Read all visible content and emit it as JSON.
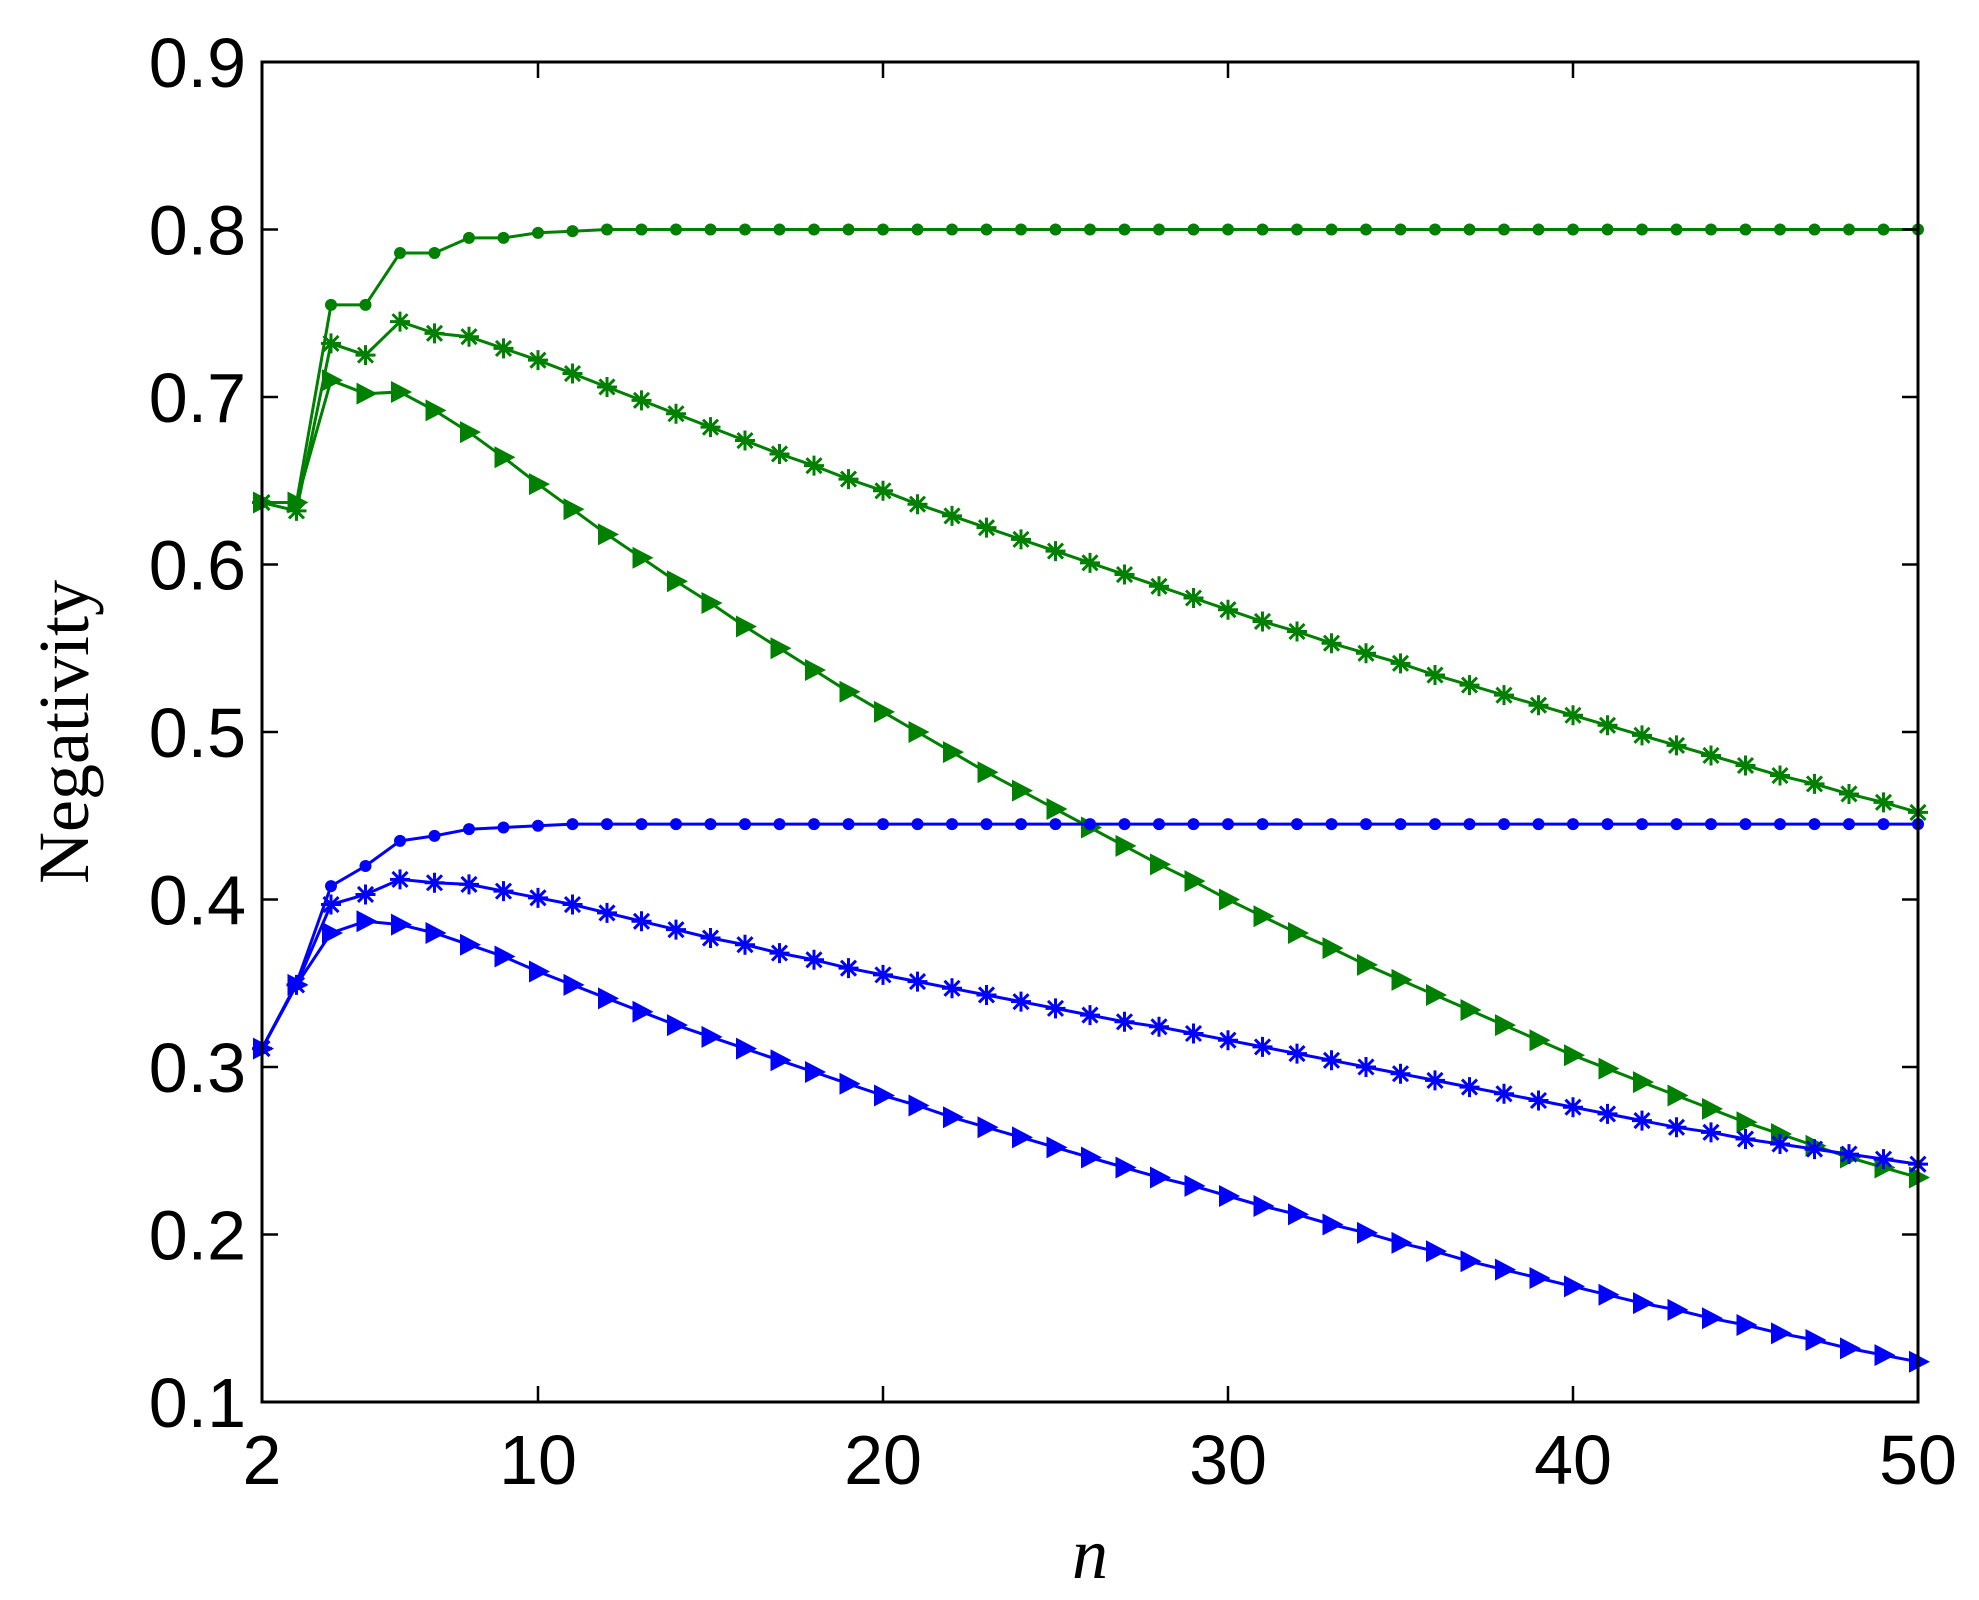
{
  "chart_data": {
    "type": "line",
    "xlabel": "n",
    "ylabel": "Negativity",
    "xlim": [
      2,
      50
    ],
    "ylim": [
      0.1,
      0.9
    ],
    "xticks": [
      2,
      10,
      20,
      30,
      40,
      50
    ],
    "xtick_labels": [
      "2",
      "10",
      "20",
      "30",
      "40",
      "50"
    ],
    "yticks": [
      0.1,
      0.2,
      0.3,
      0.4,
      0.5,
      0.6,
      0.7,
      0.8,
      0.9
    ],
    "ytick_labels": [
      "0.1",
      "0.2",
      "0.3",
      "0.4",
      "0.5",
      "0.6",
      "0.7",
      "0.8",
      "0.9"
    ],
    "grid": false,
    "x": [
      2,
      3,
      4,
      5,
      6,
      7,
      8,
      9,
      10,
      11,
      12,
      13,
      14,
      15,
      16,
      17,
      18,
      19,
      20,
      21,
      22,
      23,
      24,
      25,
      26,
      27,
      28,
      29,
      30,
      31,
      32,
      33,
      34,
      35,
      36,
      37,
      38,
      39,
      40,
      41,
      42,
      43,
      44,
      45,
      46,
      47,
      48,
      49,
      50
    ],
    "series": [
      {
        "marker": "dot",
        "color": "#008000",
        "values": [
          0.637,
          0.637,
          0.755,
          0.755,
          0.786,
          0.786,
          0.795,
          0.795,
          0.798,
          0.799,
          0.8,
          0.8,
          0.8,
          0.8,
          0.8,
          0.8,
          0.8,
          0.8,
          0.8,
          0.8,
          0.8,
          0.8,
          0.8,
          0.8,
          0.8,
          0.8,
          0.8,
          0.8,
          0.8,
          0.8,
          0.8,
          0.8,
          0.8,
          0.8,
          0.8,
          0.8,
          0.8,
          0.8,
          0.8,
          0.8,
          0.8,
          0.8,
          0.8,
          0.8,
          0.8,
          0.8,
          0.8,
          0.8,
          0.8
        ]
      },
      {
        "marker": "star",
        "color": "#008000",
        "values": [
          0.637,
          0.632,
          0.732,
          0.725,
          0.745,
          0.738,
          0.736,
          0.729,
          0.722,
          0.714,
          0.706,
          0.698,
          0.69,
          0.682,
          0.674,
          0.666,
          0.659,
          0.651,
          0.644,
          0.636,
          0.629,
          0.622,
          0.615,
          0.608,
          0.601,
          0.594,
          0.587,
          0.58,
          0.573,
          0.566,
          0.56,
          0.553,
          0.547,
          0.541,
          0.534,
          0.528,
          0.522,
          0.516,
          0.51,
          0.504,
          0.498,
          0.492,
          0.486,
          0.48,
          0.474,
          0.469,
          0.463,
          0.458,
          0.452
        ]
      },
      {
        "marker": "triangle-right",
        "color": "#008000",
        "values": [
          0.637,
          0.637,
          0.71,
          0.702,
          0.703,
          0.692,
          0.679,
          0.664,
          0.648,
          0.633,
          0.618,
          0.604,
          0.59,
          0.577,
          0.563,
          0.55,
          0.537,
          0.524,
          0.512,
          0.5,
          0.488,
          0.476,
          0.465,
          0.454,
          0.443,
          0.432,
          0.421,
          0.411,
          0.4,
          0.39,
          0.38,
          0.371,
          0.361,
          0.352,
          0.343,
          0.334,
          0.325,
          0.316,
          0.307,
          0.299,
          0.291,
          0.283,
          0.275,
          0.267,
          0.26,
          0.253,
          0.246,
          0.24,
          0.234
        ]
      },
      {
        "marker": "dot",
        "color": "#0000ff",
        "values": [
          0.311,
          0.35,
          0.408,
          0.42,
          0.435,
          0.438,
          0.442,
          0.443,
          0.444,
          0.445,
          0.445,
          0.445,
          0.445,
          0.445,
          0.445,
          0.445,
          0.445,
          0.445,
          0.445,
          0.445,
          0.445,
          0.445,
          0.445,
          0.445,
          0.445,
          0.445,
          0.445,
          0.445,
          0.445,
          0.445,
          0.445,
          0.445,
          0.445,
          0.445,
          0.445,
          0.445,
          0.445,
          0.445,
          0.445,
          0.445,
          0.445,
          0.445,
          0.445,
          0.445,
          0.445,
          0.445,
          0.445,
          0.445,
          0.445
        ]
      },
      {
        "marker": "star",
        "color": "#0000ff",
        "values": [
          0.311,
          0.349,
          0.397,
          0.403,
          0.412,
          0.41,
          0.409,
          0.405,
          0.401,
          0.397,
          0.392,
          0.387,
          0.382,
          0.377,
          0.373,
          0.368,
          0.364,
          0.359,
          0.355,
          0.351,
          0.347,
          0.343,
          0.339,
          0.335,
          0.331,
          0.327,
          0.324,
          0.32,
          0.316,
          0.312,
          0.308,
          0.304,
          0.3,
          0.296,
          0.292,
          0.288,
          0.284,
          0.28,
          0.276,
          0.272,
          0.268,
          0.264,
          0.261,
          0.257,
          0.254,
          0.251,
          0.248,
          0.245,
          0.242
        ]
      },
      {
        "marker": "triangle-right",
        "color": "#0000ff",
        "values": [
          0.311,
          0.349,
          0.38,
          0.387,
          0.385,
          0.38,
          0.373,
          0.366,
          0.357,
          0.349,
          0.341,
          0.333,
          0.325,
          0.318,
          0.311,
          0.304,
          0.297,
          0.29,
          0.283,
          0.277,
          0.27,
          0.264,
          0.258,
          0.252,
          0.246,
          0.24,
          0.234,
          0.229,
          0.223,
          0.217,
          0.212,
          0.206,
          0.201,
          0.195,
          0.19,
          0.184,
          0.179,
          0.174,
          0.169,
          0.164,
          0.159,
          0.155,
          0.15,
          0.146,
          0.141,
          0.137,
          0.132,
          0.128,
          0.124
        ]
      }
    ]
  }
}
